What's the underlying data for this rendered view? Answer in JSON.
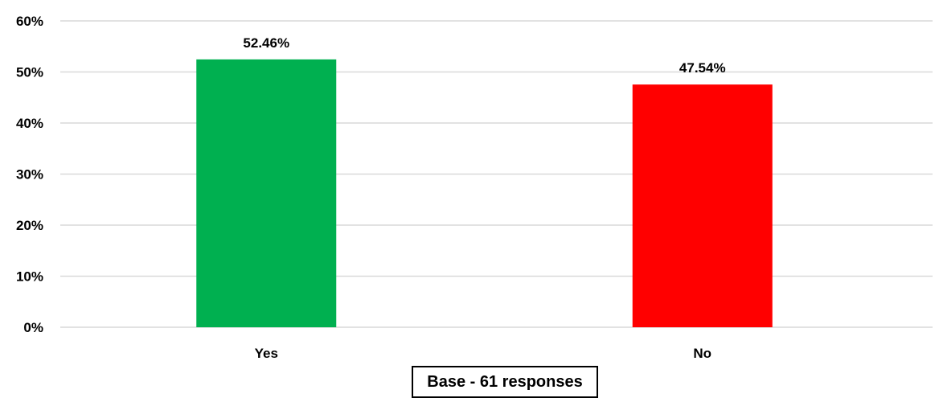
{
  "chart_data": {
    "type": "bar",
    "categories": [
      "Yes",
      "No"
    ],
    "values": [
      52.46,
      47.54
    ],
    "value_labels": [
      "52.46%",
      "47.54%"
    ],
    "bar_colors": [
      "#00b050",
      "#ff0000"
    ],
    "ylim": [
      0,
      60
    ],
    "yticks": [
      0,
      10,
      20,
      30,
      40,
      50,
      60
    ],
    "ytick_labels": [
      "0%",
      "10%",
      "20%",
      "30%",
      "40%",
      "50%",
      "60%"
    ],
    "grid": true,
    "gridline_color": "#d9d9d9",
    "legend": "none",
    "title": "",
    "xlabel": "",
    "ylabel": ""
  },
  "footer": {
    "base_note": "Base - 61 responses"
  }
}
